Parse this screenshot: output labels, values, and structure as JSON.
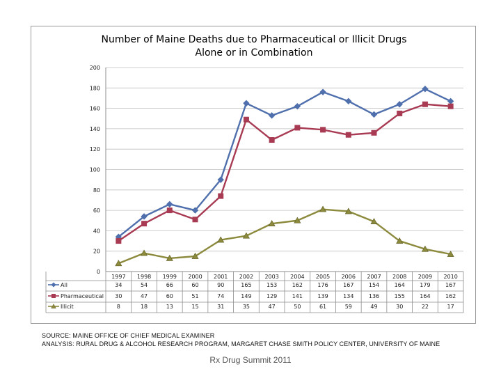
{
  "chart_data": {
    "type": "line",
    "title_line1": "Number of Maine Deaths due to Pharmaceutical or Illicit Drugs",
    "title_line2": "Alone or in Combination",
    "categories": [
      "1997",
      "1998",
      "1999",
      "2000",
      "2001",
      "2002",
      "2003",
      "2004",
      "2005",
      "2006",
      "2007",
      "2008",
      "2009",
      "2010"
    ],
    "ylim": [
      0,
      200
    ],
    "y_ticks": [
      "0",
      "20",
      "40",
      "60",
      "80",
      "100",
      "120",
      "140",
      "160",
      "180",
      "200"
    ],
    "gridlines": true,
    "legend": "data-table-left",
    "series": [
      {
        "name": "All",
        "color": "#4f6fad",
        "marker": "diamond",
        "values": [
          34,
          54,
          66,
          60,
          90,
          165,
          153,
          162,
          176,
          167,
          154,
          164,
          179,
          167
        ]
      },
      {
        "name": "Pharmaceutical",
        "color": "#a83a53",
        "marker": "square",
        "values": [
          30,
          47,
          60,
          51,
          74,
          149,
          129,
          141,
          139,
          134,
          136,
          155,
          164,
          162
        ]
      },
      {
        "name": "Illicit",
        "color": "#8c8a3c",
        "marker": "triangle",
        "values": [
          8,
          18,
          13,
          15,
          31,
          35,
          47,
          50,
          61,
          59,
          49,
          30,
          22,
          17
        ]
      }
    ]
  },
  "footer": {
    "source": "SOURCE: MAINE OFFICE OF CHIEF MEDICAL EXAMINER",
    "analysis": "ANALYSIS: RURAL DRUG & ALCOHOL RESEARCH PROGRAM, MARGARET CHASE SMITH POLICY CENTER, UNIVERSITY OF MAINE",
    "event": "Rx Drug Summit 2011"
  }
}
